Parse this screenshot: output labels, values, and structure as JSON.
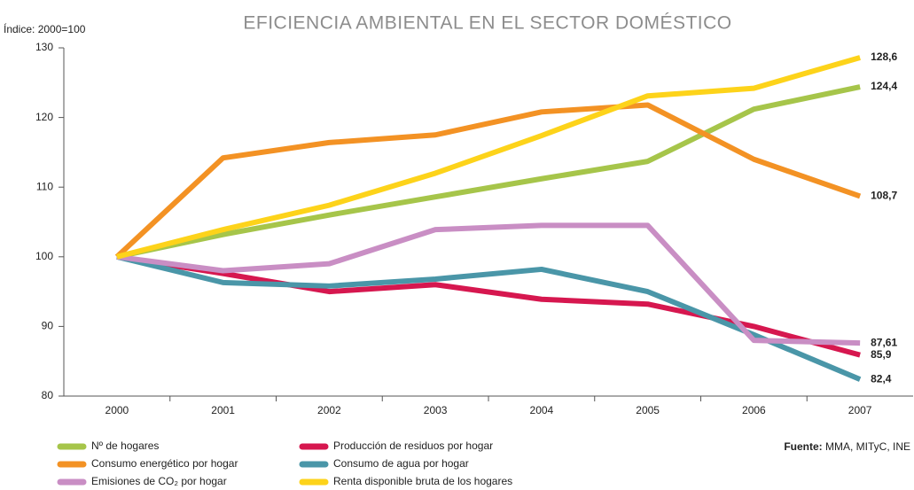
{
  "chart_data": {
    "type": "line",
    "title": "EFICIENCIA AMBIENTAL EN EL SECTOR DOMÉSTICO",
    "y_label": "Índice: 2000=100",
    "source_label": "Fuente:",
    "source": "MMA, MITyC, INE",
    "categories": [
      "2000",
      "2001",
      "2002",
      "2003",
      "2004",
      "2005",
      "2006",
      "2007"
    ],
    "ylim": [
      80,
      130
    ],
    "yticks": [
      80,
      90,
      100,
      110,
      120,
      130
    ],
    "grid": false,
    "series": [
      {
        "name": "Nº de hogares",
        "color": "#a6c54a",
        "values": [
          100,
          103.2,
          106,
          108.6,
          111.2,
          113.7,
          121.2,
          124.4
        ],
        "value_labels": [
          null,
          null,
          null,
          null,
          null,
          null,
          null,
          "124,4"
        ]
      },
      {
        "name": "Producción de residuos por hogar",
        "color": "#d6174f",
        "values": [
          100,
          97.6,
          95,
          96,
          93.9,
          93.2,
          90,
          85.9
        ],
        "value_labels": [
          null,
          null,
          null,
          null,
          null,
          null,
          null,
          "85,9"
        ]
      },
      {
        "name": "Consumo energético por hogar",
        "color": "#f39224",
        "values": [
          100,
          114.2,
          116.4,
          117.5,
          120.8,
          121.8,
          114,
          108.7
        ],
        "value_labels": [
          null,
          null,
          null,
          null,
          null,
          null,
          null,
          "108,7"
        ]
      },
      {
        "name": "Consumo de agua por hogar",
        "color": "#4a96a8",
        "values": [
          100,
          96.3,
          95.8,
          96.8,
          98.2,
          95,
          88.8,
          82.4
        ],
        "value_labels": [
          null,
          null,
          null,
          null,
          null,
          null,
          null,
          "82,4"
        ]
      },
      {
        "name": "Emisiones de CO₂ por hogar",
        "color": "#c98ec4",
        "values": [
          100,
          98,
          99,
          103.9,
          104.5,
          104.5,
          88,
          87.61
        ],
        "value_labels": [
          null,
          null,
          null,
          null,
          null,
          null,
          null,
          "87,61"
        ]
      },
      {
        "name": "Renta disponible bruta de los hogares",
        "color": "#fdd31a",
        "values": [
          100,
          103.9,
          107.4,
          112,
          117.4,
          123.1,
          124.2,
          128.6
        ],
        "value_labels": [
          null,
          null,
          null,
          null,
          null,
          null,
          null,
          "128,6"
        ]
      }
    ]
  }
}
